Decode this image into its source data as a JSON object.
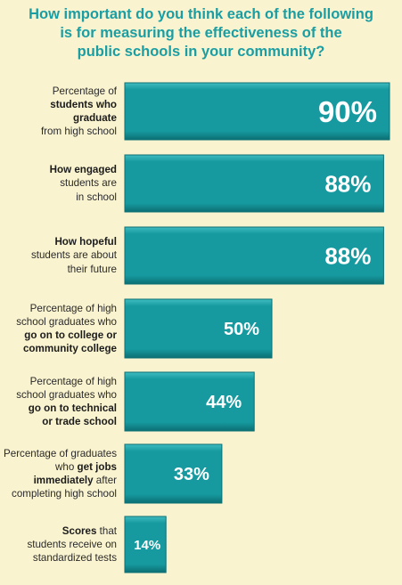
{
  "colors": {
    "background": "#f9f3cf",
    "bar_fill": "#169a9f",
    "bar_highlight": "#3fbcc0",
    "bar_shadow": "#0c6f73",
    "title": "#1a9ea3",
    "label_text": "#2a2a2a",
    "value_text": "#ffffff"
  },
  "chart_data": {
    "type": "bar",
    "orientation": "horizontal",
    "title": "How important do you think each of the following is for measuring the effectiveness of the public schools in your community?",
    "title_lines": [
      "How important do you think each of the following",
      "is for measuring the effectiveness of the",
      "public schools in your community?"
    ],
    "xlim": [
      0,
      100
    ],
    "grid": false,
    "legend": "none",
    "unit": "%",
    "categories": [
      "Percentage of students who graduate from high school",
      "How engaged students are in school",
      "How hopeful students are about their future",
      "Percentage of high school graduates who go on to college or community college",
      "Percentage of high school graduates who go on to technical or trade school",
      "Percentage of graduates who get jobs immediately after completing high school",
      "Scores that students receive on standardized tests"
    ],
    "values": [
      90,
      88,
      88,
      50,
      44,
      33,
      14
    ],
    "value_labels": [
      "90%",
      "88%",
      "88%",
      "50%",
      "44%",
      "33%",
      "14%"
    ],
    "category_lines": [
      [
        [
          {
            "t": "Percentage of",
            "b": false
          }
        ],
        [
          {
            "t": "students who",
            "b": true
          }
        ],
        [
          {
            "t": "graduate",
            "b": true
          }
        ],
        [
          {
            "t": "from high school",
            "b": false
          }
        ]
      ],
      [
        [
          {
            "t": "How engaged",
            "b": true
          }
        ],
        [
          {
            "t": "students are",
            "b": false
          }
        ],
        [
          {
            "t": "in school",
            "b": false
          }
        ]
      ],
      [
        [
          {
            "t": "How hopeful",
            "b": true
          }
        ],
        [
          {
            "t": "students are about",
            "b": false
          }
        ],
        [
          {
            "t": "their future",
            "b": false
          }
        ]
      ],
      [
        [
          {
            "t": "Percentage of high",
            "b": false
          }
        ],
        [
          {
            "t": "school graduates who",
            "b": false
          }
        ],
        [
          {
            "t": "go on to college or",
            "b": true
          }
        ],
        [
          {
            "t": "community college",
            "b": true
          }
        ]
      ],
      [
        [
          {
            "t": "Percentage of high",
            "b": false
          }
        ],
        [
          {
            "t": "school graduates who",
            "b": false
          }
        ],
        [
          {
            "t": "go on to technical",
            "b": true
          }
        ],
        [
          {
            "t": "or trade school",
            "b": true
          }
        ]
      ],
      [
        [
          {
            "t": "Percentage of graduates",
            "b": false
          }
        ],
        [
          {
            "t": "who ",
            "b": false
          },
          {
            "t": "get jobs",
            "b": true
          }
        ],
        [
          {
            "t": "immediately",
            "b": true
          },
          {
            "t": " after",
            "b": false
          }
        ],
        [
          {
            "t": "completing high school",
            "b": false
          }
        ]
      ],
      [
        [
          {
            "t": "Scores",
            "b": true
          },
          {
            "t": " that",
            "b": false
          }
        ],
        [
          {
            "t": "students receive on",
            "b": false
          }
        ],
        [
          {
            "t": "standardized tests",
            "b": false
          }
        ]
      ]
    ]
  }
}
